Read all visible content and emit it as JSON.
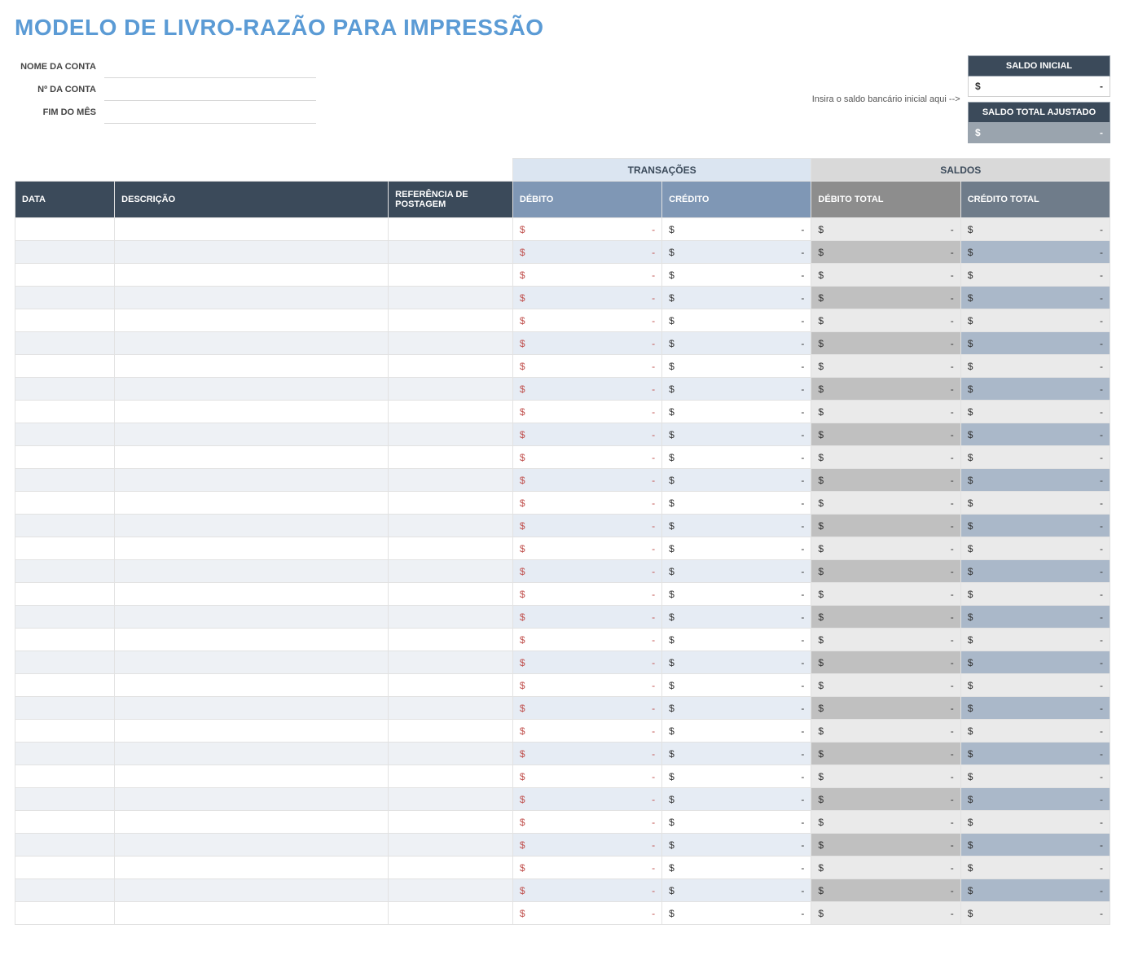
{
  "title": "MODELO DE LIVRO-RAZÃO PARA IMPRESSÃO",
  "account": {
    "name_label": "NOME DA CONTA",
    "number_label": "Nº DA CONTA",
    "month_end_label": "FIM DO MÊS",
    "name_value": "",
    "number_value": "",
    "month_end_value": ""
  },
  "balances_box": {
    "hint": "Insira o saldo bancário inicial aqui -->",
    "initial_label": "SALDO INICIAL",
    "initial_symbol": "$",
    "initial_value": "-",
    "adjusted_label": "SALDO TOTAL AJUSTADO",
    "adjusted_symbol": "$",
    "adjusted_value": "-"
  },
  "groups": {
    "transactions": "TRANSAÇÕES",
    "balances": "SALDOS"
  },
  "columns": {
    "date": "DATA",
    "description": "DESCRIÇÃO",
    "post_ref": "REFERÊNCIA DE POSTAGEM",
    "debit": "DÉBITO",
    "credit": "CRÉDITO",
    "total_debit": "DÉBITO TOTAL",
    "total_credit": "CRÉDITO TOTAL"
  },
  "row_count": 31,
  "cell": {
    "symbol": "$",
    "value": "-"
  },
  "colors": {
    "title": "#5b9bd5",
    "header_dark": "#3b4a5a",
    "header_blue": "#7f97b5",
    "header_gray": "#8d8d8d",
    "header_slate": "#6f7c8a",
    "group_trans_bg": "#dbe5f1",
    "group_bal_bg": "#d9d9d9",
    "debit_text": "#c0504d",
    "stripe_light": "#eef1f5",
    "stripe_blue": "#e6ecf4",
    "stripe_gray_dark": "#c0c0c0",
    "stripe_gray_light": "#eaeaea",
    "stripe_slate": "#aab8c9"
  }
}
